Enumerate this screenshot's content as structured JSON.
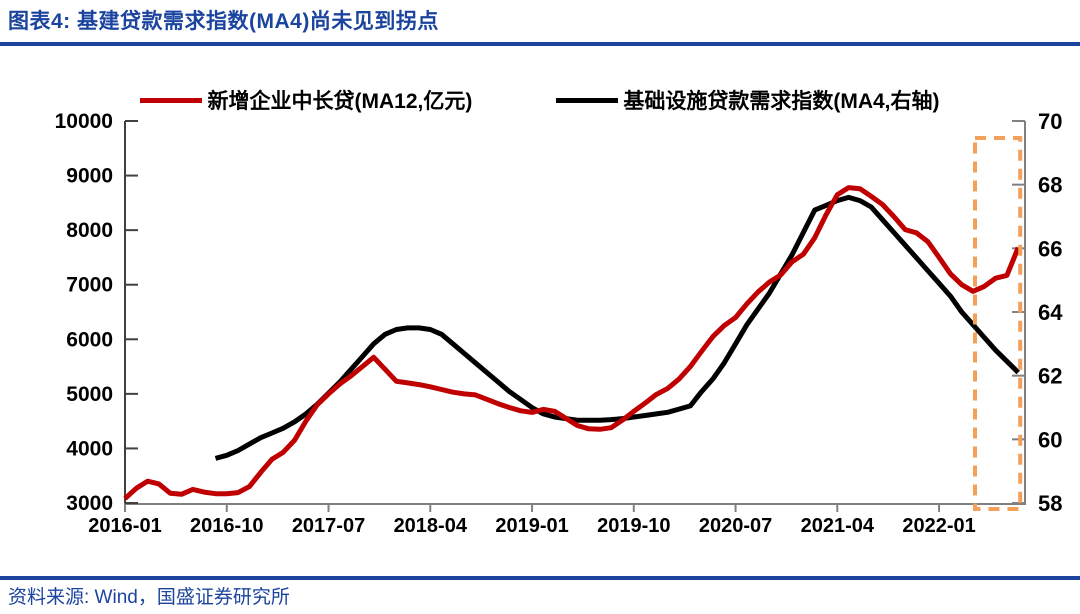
{
  "page": {
    "title": "图表4:  基建贷款需求指数(MA4)尚未见到拐点",
    "source": "资料来源: Wind，国盛证券研究所"
  },
  "colors": {
    "accent_blue": "#1B449E",
    "series_red": "#C00000",
    "series_black": "#000000",
    "highlight_orange": "#F2A05A",
    "axis_dark": "#404040",
    "axis_gray": "#808080"
  },
  "chart_data": {
    "type": "line",
    "x_unit": "month",
    "x_start": "2016-01",
    "x_end": "2022-08",
    "x_tick_interval_months": 9,
    "x_tick_labels": [
      "2016-01",
      "2016-10",
      "2017-07",
      "2018-04",
      "2019-01",
      "2019-10",
      "2020-07",
      "2021-04",
      "2022-01"
    ],
    "left_axis": {
      "min": 3000,
      "max": 10000,
      "ticks": [
        3000,
        4000,
        5000,
        6000,
        7000,
        8000,
        9000,
        10000
      ]
    },
    "right_axis": {
      "min": 58,
      "max": 70,
      "ticks": [
        58,
        60,
        62,
        64,
        66,
        68,
        70
      ]
    },
    "grid": false,
    "legend_position": "top",
    "series": [
      {
        "name": "新增企业中长贷(MA12,亿元)",
        "color": "#C00000",
        "axis": "left",
        "start_month": "2016-01",
        "values": [
          3080,
          3270,
          3400,
          3350,
          3180,
          3160,
          3250,
          3200,
          3170,
          3170,
          3190,
          3300,
          3560,
          3800,
          3930,
          4150,
          4500,
          4800,
          5000,
          5180,
          5330,
          5500,
          5670,
          5450,
          5230,
          5200,
          5170,
          5130,
          5080,
          5030,
          5000,
          4980,
          4900,
          4820,
          4750,
          4690,
          4660,
          4715,
          4680,
          4550,
          4420,
          4360,
          4350,
          4380,
          4520,
          4680,
          4830,
          4990,
          5100,
          5270,
          5500,
          5780,
          6050,
          6250,
          6400,
          6650,
          6870,
          7050,
          7180,
          7420,
          7560,
          7860,
          8280,
          8650,
          8780,
          8760,
          8620,
          8470,
          8250,
          8010,
          7950,
          7790,
          7500,
          7200,
          7000,
          6880,
          6970,
          7120,
          7170,
          7680
        ]
      },
      {
        "name": "基础设施贷款需求指数(MA4,右轴)",
        "color": "#000000",
        "axis": "right",
        "start_month": "2016-09",
        "values": [
          59.4,
          59.5,
          59.65,
          59.85,
          60.05,
          60.2,
          60.35,
          60.55,
          60.8,
          61.1,
          61.45,
          61.8,
          62.2,
          62.6,
          63.0,
          63.3,
          63.45,
          63.5,
          63.5,
          63.45,
          63.3,
          63.0,
          62.7,
          62.4,
          62.1,
          61.8,
          61.5,
          61.25,
          61.0,
          60.8,
          60.7,
          60.65,
          60.6,
          60.6,
          60.6,
          60.62,
          60.65,
          60.7,
          60.75,
          60.8,
          60.85,
          60.95,
          61.05,
          61.5,
          61.9,
          62.4,
          63.0,
          63.6,
          64.1,
          64.6,
          65.2,
          65.8,
          66.5,
          67.2,
          67.35,
          67.5,
          67.6,
          67.5,
          67.3,
          66.9,
          66.5,
          66.1,
          65.7,
          65.3,
          64.9,
          64.5,
          64.0,
          63.6,
          63.2,
          62.8,
          62.45,
          62.1
        ]
      }
    ],
    "highlight_region": {
      "from": "2022-04",
      "to": "2022-08",
      "style": "orange-dashed-box"
    }
  }
}
